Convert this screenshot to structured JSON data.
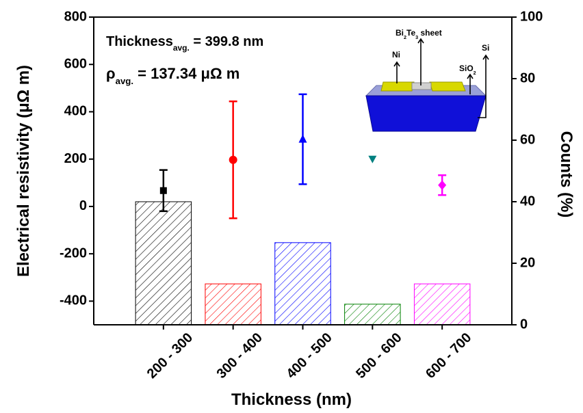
{
  "chart_data": {
    "type": "bar",
    "categories": [
      "200 - 300",
      "300 - 400",
      "400 - 500",
      "500 - 600",
      "600 - 700"
    ],
    "x_label": "Thickness (nm)",
    "y_label": "Electrical resistivity (μΩ m)",
    "y2_label": "Counts (%)",
    "ylim": [
      -500,
      800
    ],
    "yticks": [
      -400,
      -200,
      0,
      200,
      400,
      600,
      800
    ],
    "y2lim": [
      0,
      100
    ],
    "y2ticks": [
      0,
      20,
      40,
      60,
      80,
      100
    ],
    "series": [
      {
        "type": "bar",
        "axis": "y2",
        "hatch": true,
        "values": [
          40,
          13.3,
          26.7,
          6.7,
          13.3
        ],
        "colors": [
          "#000000",
          "#ff0000",
          "#0000ff",
          "#008000",
          "#ff00ff"
        ]
      },
      {
        "type": "scatter",
        "axis": "y",
        "values": [
          67,
          197,
          284,
          200,
          90
        ],
        "errors": [
          87,
          247,
          190,
          null,
          42
        ],
        "colors": [
          "#000000",
          "#ff0000",
          "#0000ff",
          "#008080",
          "#ff00ff"
        ],
        "markers": [
          "square",
          "circle",
          "triangle-up",
          "triangle-down",
          "diamond"
        ]
      }
    ],
    "annotations": [
      {
        "parts": [
          {
            "text": "Thickness"
          },
          {
            "sub": "avg."
          },
          {
            "text": " = 399.8 nm"
          }
        ]
      },
      {
        "parts": [
          {
            "text": "ρ"
          },
          {
            "sub": "avg."
          },
          {
            "text": " = 137.34 μΩ m"
          }
        ]
      }
    ],
    "inset_labels": [
      {
        "parts": [
          {
            "text": "Bi"
          },
          {
            "sub": "2"
          },
          {
            "text": "Te"
          },
          {
            "sub": "3"
          },
          {
            "text": " sheet"
          }
        ]
      },
      {
        "parts": [
          {
            "text": "Ni"
          }
        ]
      },
      {
        "parts": [
          {
            "text": "SiO"
          },
          {
            "sub": "2"
          }
        ]
      },
      {
        "parts": [
          {
            "text": "Si"
          }
        ]
      }
    ]
  }
}
